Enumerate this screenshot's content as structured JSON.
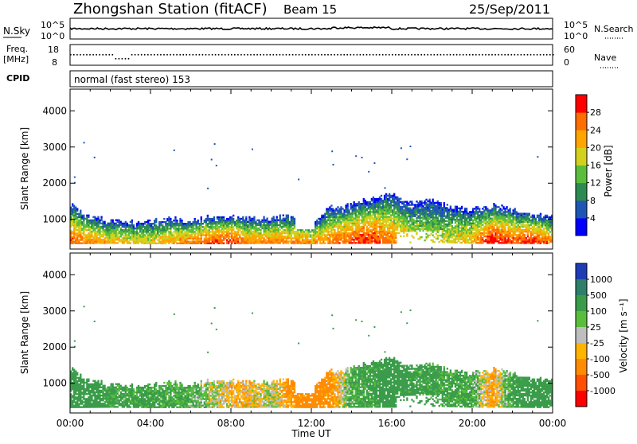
{
  "header": {
    "station": "Zhongshan Station (fitACF)",
    "beam": "Beam 15",
    "date": "25/Sep/2011"
  },
  "top_panels": {
    "nsky": {
      "label": "N.Sky",
      "tick_top": "10^5",
      "tick_bottom": "10^0",
      "right_label": "N.Search",
      "right_tick_top": "10^5",
      "right_tick_bottom": "10^0"
    },
    "freq": {
      "label_line1": "Freq.",
      "label_line2": "[MHz]",
      "tick_top": "18",
      "tick_bottom": "8",
      "right_label": "Nave",
      "right_tick_top": "60",
      "right_tick_bottom": "0"
    },
    "cpid": {
      "label": "CPID",
      "text": "normal (fast stereo) 153"
    }
  },
  "colors": {
    "power_scale": [
      "#0000ff",
      "#1e56b4",
      "#2d8a52",
      "#5abe3c",
      "#d2d21e",
      "#ffa500",
      "#ff6e00",
      "#ff0000"
    ],
    "velocity_scale": [
      "#1e3cb4",
      "#2e7f6a",
      "#3a9c4a",
      "#5abe3c",
      "#bebebe",
      "#ffb400",
      "#ff8c00",
      "#ff5000",
      "#ff0000"
    ]
  },
  "chart_data": [
    {
      "type": "heatmap",
      "panel": "power",
      "xlabel": "",
      "ylabel": "Slant Range [km]",
      "x_ticks": [
        "00:00",
        "04:00",
        "08:00",
        "12:00",
        "16:00",
        "20:00",
        "00:00"
      ],
      "x_range_hours": [
        0,
        24
      ],
      "y_ticks": [
        1000,
        2000,
        3000,
        4000
      ],
      "y_range_km": [
        180,
        4600
      ],
      "colorbar": {
        "label": "Power [dB]",
        "ticks": [
          "4",
          "8",
          "12",
          "16",
          "20",
          "24",
          "28"
        ],
        "range": [
          0,
          32
        ]
      },
      "echo_band": {
        "bottom_km": [
          [
            0,
            320
          ],
          [
            2,
            330
          ],
          [
            4,
            320
          ],
          [
            6,
            320
          ],
          [
            8,
            320
          ],
          [
            10,
            330
          ],
          [
            12,
            320
          ],
          [
            14,
            330
          ],
          [
            16,
            330
          ],
          [
            18,
            360
          ],
          [
            20,
            330
          ],
          [
            22,
            330
          ],
          [
            24,
            320
          ]
        ],
        "top_km": [
          [
            0,
            1400
          ],
          [
            1,
            1050
          ],
          [
            2,
            950
          ],
          [
            3,
            900
          ],
          [
            4,
            950
          ],
          [
            5,
            1000
          ],
          [
            6,
            950
          ],
          [
            7,
            1050
          ],
          [
            8,
            1050
          ],
          [
            9,
            1000
          ],
          [
            10,
            1000
          ],
          [
            11,
            1050
          ],
          [
            12,
            900
          ],
          [
            13,
            1300
          ],
          [
            14,
            1400
          ],
          [
            15,
            1550
          ],
          [
            16,
            1650
          ],
          [
            17,
            1450
          ],
          [
            18,
            1550
          ],
          [
            19,
            1300
          ],
          [
            20,
            1250
          ],
          [
            21,
            1350
          ],
          [
            22,
            1250
          ],
          [
            23,
            1100
          ],
          [
            24,
            1100
          ]
        ],
        "core_db": [
          [
            0,
            24
          ],
          [
            2,
            18
          ],
          [
            4,
            16
          ],
          [
            6,
            22
          ],
          [
            8,
            26
          ],
          [
            9,
            20
          ],
          [
            10,
            22
          ],
          [
            12,
            20
          ],
          [
            14,
            24
          ],
          [
            15,
            26
          ],
          [
            16,
            22
          ],
          [
            17,
            16
          ],
          [
            18,
            14
          ],
          [
            20,
            18
          ],
          [
            21,
            28
          ],
          [
            22,
            24
          ],
          [
            23,
            26
          ],
          [
            24,
            22
          ]
        ]
      }
    },
    {
      "type": "heatmap",
      "panel": "velocity",
      "xlabel": "Time UT",
      "ylabel": "Slant Range [km]",
      "x_ticks": [
        "00:00",
        "04:00",
        "08:00",
        "12:00",
        "16:00",
        "20:00",
        "00:00"
      ],
      "x_range_hours": [
        0,
        24
      ],
      "y_ticks": [
        1000,
        2000,
        3000,
        4000
      ],
      "y_range_km": [
        180,
        4600
      ],
      "colorbar": {
        "label": "Velocity [m s⁻¹]",
        "ticks": [
          "1000",
          "500",
          "100",
          "25",
          "-25",
          "-100",
          "-500",
          "-1000"
        ],
        "range": [
          1200,
          -1200
        ]
      },
      "dominant_velocity_ms": [
        [
          0,
          300
        ],
        [
          2,
          150
        ],
        [
          4,
          150
        ],
        [
          6,
          100
        ],
        [
          8,
          -60
        ],
        [
          9,
          -60
        ],
        [
          10,
          40
        ],
        [
          11,
          -150
        ],
        [
          12,
          -200
        ],
        [
          13,
          -150
        ],
        [
          14,
          120
        ],
        [
          16,
          200
        ],
        [
          18,
          150
        ],
        [
          20,
          120
        ],
        [
          21,
          -120
        ],
        [
          22,
          150
        ],
        [
          24,
          300
        ]
      ]
    }
  ]
}
